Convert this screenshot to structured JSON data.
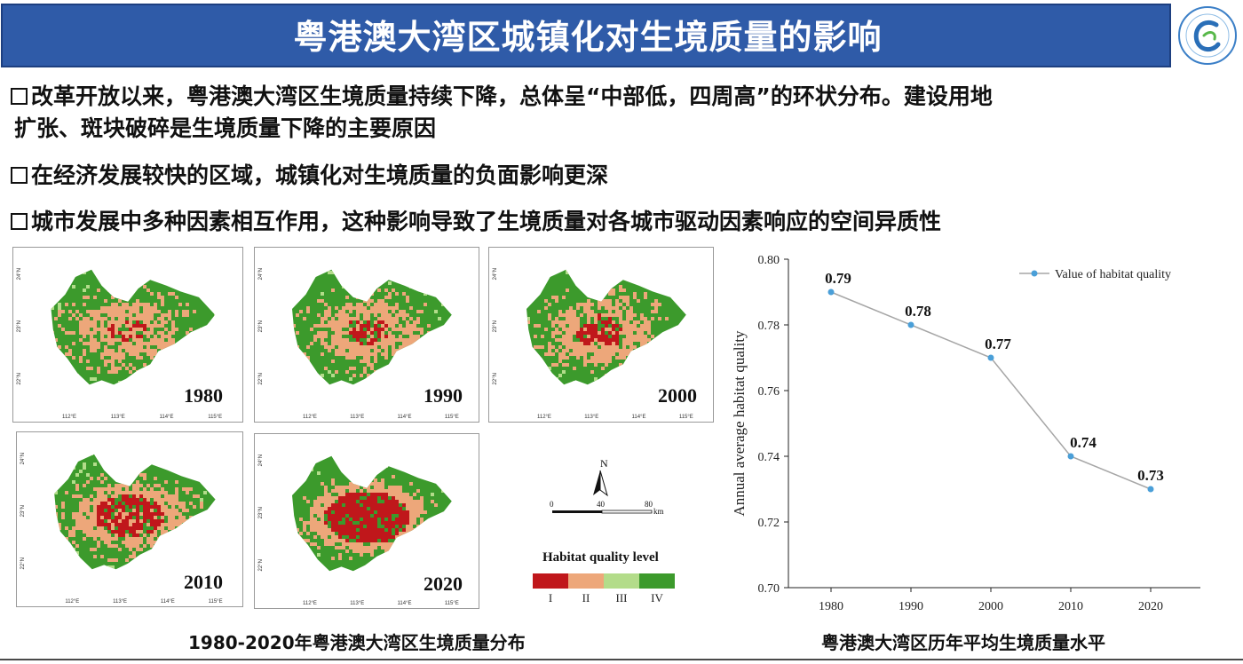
{
  "header": {
    "title": "粤港澳大湾区城镇化对生境质量的影响"
  },
  "bullets": [
    {
      "line1": "改革开放以来，粤港澳大湾区生境质量持续下降，总体呈“中部低，四周高”的环状分布。建设用地",
      "line2": "扩张、斑块破碎是生境质量下降的主要原因"
    },
    {
      "line1": "在经济发展较快的区域，城镇化对生境质量的负面影响更深"
    },
    {
      "line1": "城市发展中多种因素相互作用，这种影响导致了生境质量对各城市驱动因素响应的空间异质性"
    }
  ],
  "maps": {
    "panels": [
      {
        "year": "1980"
      },
      {
        "year": "1990"
      },
      {
        "year": "2000"
      },
      {
        "year": "2010"
      },
      {
        "year": "2020"
      }
    ],
    "lon_ticks": [
      "112°E",
      "113°E",
      "114°E",
      "115°E"
    ],
    "lat_ticks": [
      "24°N",
      "23°N",
      "22°N"
    ],
    "caption": "1980-2020年粤港澳大湾区生境质量分布"
  },
  "north_arrow": {
    "label": "N"
  },
  "scale_bar": {
    "labels": [
      "0",
      "40",
      "80"
    ],
    "unit": "km"
  },
  "legend": {
    "title": "Habitat quality level",
    "items": [
      {
        "label": "I",
        "color": "#c0171b"
      },
      {
        "label": "II",
        "color": "#eda77a"
      },
      {
        "label": "III",
        "color": "#b3dc8a"
      },
      {
        "label": "IV",
        "color": "#3c9a2c"
      }
    ]
  },
  "chart_data": {
    "type": "line",
    "x": [
      "1980",
      "1990",
      "2000",
      "2010",
      "2020"
    ],
    "series": [
      {
        "name": "Value of habitat quality",
        "values": [
          0.79,
          0.78,
          0.77,
          0.74,
          0.73
        ],
        "color": "#4a9fd8"
      }
    ],
    "data_labels": [
      "0.79",
      "0.78",
      "0.77",
      "0.74",
      "0.73"
    ],
    "ylabel": "Annual average habitat quality",
    "ylim": [
      0.7,
      0.8
    ],
    "yticks": [
      "0.70",
      "0.72",
      "0.74",
      "0.76",
      "0.78",
      "0.80"
    ],
    "legend_position": "top-right",
    "grid": false
  },
  "chart_caption": "粤港澳大湾区历年平均生境质量水平"
}
